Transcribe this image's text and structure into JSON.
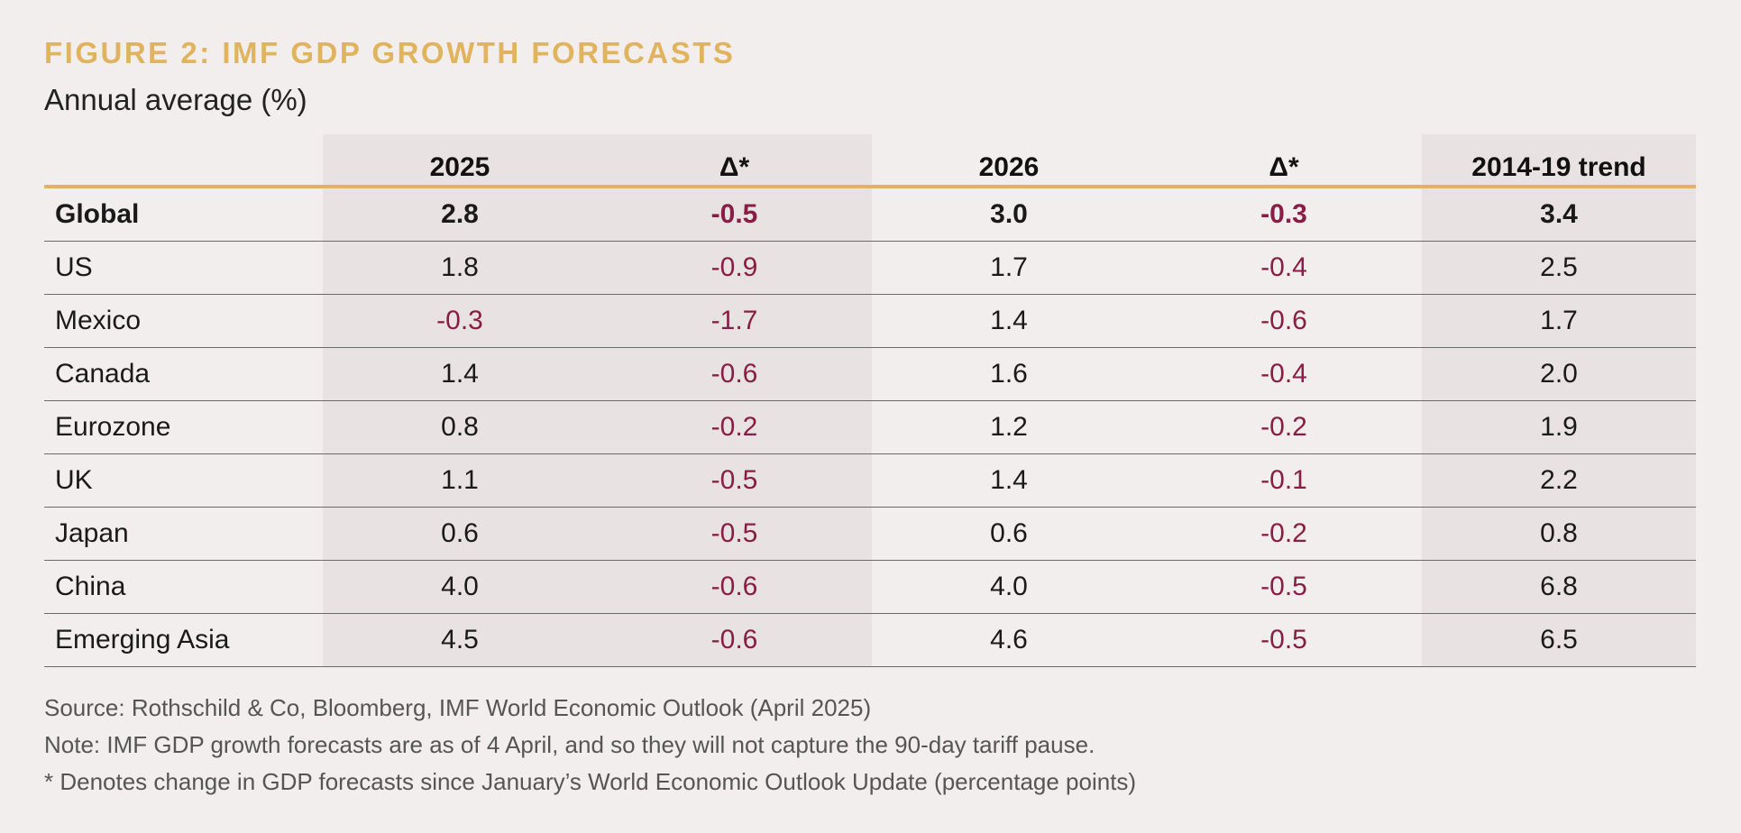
{
  "title": "FIGURE 2: IMF GDP GROWTH FORECASTS",
  "subtitle": "Annual average (%)",
  "chart_data": {
    "type": "table",
    "title": "FIGURE 2: IMF GDP GROWTH FORECASTS",
    "subtitle": "Annual average (%)",
    "columns": [
      "",
      "2025",
      "Δ*",
      "2026",
      "Δ*",
      "2014-19 trend"
    ],
    "rows": [
      {
        "label": "Global",
        "values": [
          "2.8",
          "-0.5",
          "3.0",
          "-0.3",
          "3.4"
        ]
      },
      {
        "label": "US",
        "values": [
          "1.8",
          "-0.9",
          "1.7",
          "-0.4",
          "2.5"
        ]
      },
      {
        "label": "Mexico",
        "values": [
          "-0.3",
          "-1.7",
          "1.4",
          "-0.6",
          "1.7"
        ]
      },
      {
        "label": "Canada",
        "values": [
          "1.4",
          "-0.6",
          "1.6",
          "-0.4",
          "2.0"
        ]
      },
      {
        "label": "Eurozone",
        "values": [
          "0.8",
          "-0.2",
          "1.2",
          "-0.2",
          "1.9"
        ]
      },
      {
        "label": "UK",
        "values": [
          "1.1",
          "-0.5",
          "1.4",
          "-0.1",
          "2.2"
        ]
      },
      {
        "label": "Japan",
        "values": [
          "0.6",
          "-0.5",
          "0.6",
          "-0.2",
          "0.8"
        ]
      },
      {
        "label": "China",
        "values": [
          "4.0",
          "-0.6",
          "4.0",
          "-0.5",
          "6.8"
        ]
      },
      {
        "label": "Emerging Asia",
        "values": [
          "4.5",
          "-0.6",
          "4.6",
          "-0.5",
          "6.5"
        ]
      }
    ]
  },
  "notes": [
    "Source: Rothschild & Co, Bloomberg, IMF World Economic Outlook (April 2025)",
    "Note: IMF GDP growth forecasts are as of 4 April, and so they will not capture the 90-day tariff pause.",
    "* Denotes change in GDP forecasts since January’s World Economic Outlook Update (percentage points)"
  ],
  "colors": {
    "title": "#e0b35f",
    "negative": "#8a1d46",
    "shade": "#e8e3e2",
    "background": "#f3eeee"
  }
}
